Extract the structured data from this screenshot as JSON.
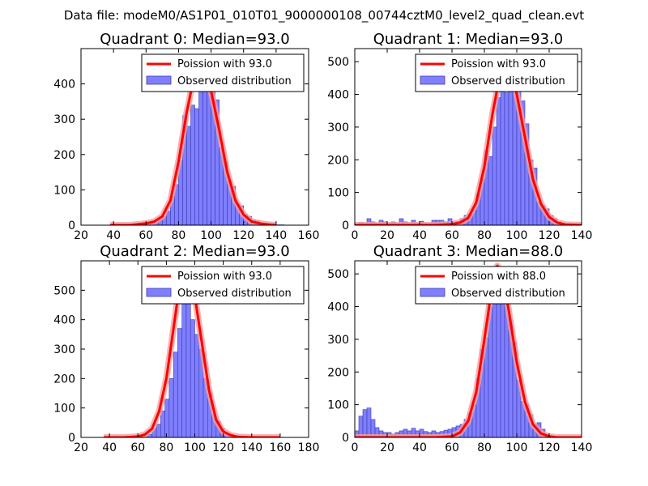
{
  "suptitle": "Data file: modeM0/AS1P01_010T01_9000000108_00744cztM0_level2_quad_clean.evt",
  "colors": {
    "bar_fill": "#7f7fff",
    "bar_edge": "#3b3bb0",
    "curve": "#ff0000",
    "curve_halo": "#f5a0a0"
  },
  "legend": {
    "curve_prefix": "Poission with",
    "bars_label": "Observed distribution"
  },
  "chart_data": [
    {
      "type": "bar",
      "title": "Quadrant 0: Median=93.0",
      "median": 93.0,
      "legend_curve": "Poission with 93.0",
      "legend_bars": "Observed distribution",
      "xlim": [
        20,
        160
      ],
      "ylim": [
        0,
        500
      ],
      "xticks": [
        20,
        40,
        60,
        80,
        100,
        120,
        140,
        160
      ],
      "yticks": [
        0,
        100,
        200,
        300,
        400
      ],
      "bin_width": 2.5,
      "bins": [
        [
          37.5,
          1
        ],
        [
          40,
          1
        ],
        [
          42.5,
          1
        ],
        [
          45,
          1
        ],
        [
          50,
          1
        ],
        [
          55,
          3
        ],
        [
          57.5,
          3
        ],
        [
          60,
          6
        ],
        [
          62.5,
          4
        ],
        [
          65,
          8
        ],
        [
          67.5,
          14
        ],
        [
          70,
          25
        ],
        [
          72.5,
          40
        ],
        [
          75,
          82
        ],
        [
          77.5,
          115
        ],
        [
          80,
          183
        ],
        [
          82.5,
          310
        ],
        [
          85,
          280
        ],
        [
          87.5,
          340
        ],
        [
          90,
          330
        ],
        [
          92.5,
          380
        ],
        [
          95,
          385
        ],
        [
          97.5,
          410
        ],
        [
          100,
          385
        ],
        [
          102.5,
          355
        ],
        [
          105,
          220
        ],
        [
          107.5,
          180
        ],
        [
          110,
          125
        ],
        [
          112.5,
          110
        ],
        [
          115,
          60
        ],
        [
          117.5,
          55
        ],
        [
          120,
          30
        ],
        [
          122.5,
          25
        ],
        [
          125,
          15
        ],
        [
          127.5,
          12
        ],
        [
          130,
          5
        ],
        [
          132.5,
          5
        ],
        [
          135,
          3
        ],
        [
          137.5,
          2
        ],
        [
          140,
          1
        ],
        [
          142.5,
          1
        ]
      ],
      "curve": [
        [
          38,
          0
        ],
        [
          50,
          0
        ],
        [
          60,
          5
        ],
        [
          65,
          10
        ],
        [
          70,
          25
        ],
        [
          75,
          70
        ],
        [
          80,
          180
        ],
        [
          85,
          320
        ],
        [
          90,
          430
        ],
        [
          93,
          460
        ],
        [
          95,
          450
        ],
        [
          100,
          380
        ],
        [
          105,
          270
        ],
        [
          110,
          150
        ],
        [
          115,
          70
        ],
        [
          120,
          30
        ],
        [
          125,
          10
        ],
        [
          130,
          5
        ],
        [
          135,
          2
        ],
        [
          140,
          0
        ]
      ]
    },
    {
      "type": "bar",
      "title": "Quadrant 1: Median=93.0",
      "median": 93.0,
      "legend_curve": "Poission with 93.0",
      "legend_bars": "Observed distribution",
      "xlim": [
        0,
        140
      ],
      "ylim": [
        0,
        540
      ],
      "xticks": [
        0,
        20,
        40,
        60,
        80,
        100,
        120,
        140
      ],
      "yticks": [
        0,
        100,
        200,
        300,
        400,
        500
      ],
      "bin_width": 2.5,
      "bins": [
        [
          2.5,
          8
        ],
        [
          5,
          5
        ],
        [
          7.5,
          20
        ],
        [
          10,
          10
        ],
        [
          12.5,
          5
        ],
        [
          15,
          15
        ],
        [
          17.5,
          10
        ],
        [
          20,
          5
        ],
        [
          22.5,
          10
        ],
        [
          25,
          5
        ],
        [
          27.5,
          20
        ],
        [
          30,
          10
        ],
        [
          32.5,
          5
        ],
        [
          35,
          15
        ],
        [
          37.5,
          5
        ],
        [
          40,
          12
        ],
        [
          42.5,
          5
        ],
        [
          45,
          5
        ],
        [
          47.5,
          15
        ],
        [
          50,
          15
        ],
        [
          52.5,
          15
        ],
        [
          55,
          10
        ],
        [
          57.5,
          20
        ],
        [
          60,
          10
        ],
        [
          62.5,
          12
        ],
        [
          65,
          20
        ],
        [
          67.5,
          30
        ],
        [
          70,
          35
        ],
        [
          72.5,
          45
        ],
        [
          75,
          95
        ],
        [
          77.5,
          140
        ],
        [
          80,
          230
        ],
        [
          82.5,
          210
        ],
        [
          85,
          300
        ],
        [
          87.5,
          390
        ],
        [
          90,
          440
        ],
        [
          92.5,
          405
        ],
        [
          95,
          470
        ],
        [
          97.5,
          490
        ],
        [
          100,
          430
        ],
        [
          102.5,
          380
        ],
        [
          105,
          310
        ],
        [
          107.5,
          200
        ],
        [
          110,
          175
        ],
        [
          112.5,
          70
        ],
        [
          115,
          60
        ],
        [
          117.5,
          50
        ],
        [
          120,
          30
        ],
        [
          122.5,
          20
        ],
        [
          125,
          10
        ],
        [
          127.5,
          5
        ],
        [
          130,
          3
        ],
        [
          132.5,
          2
        ]
      ],
      "curve": [
        [
          0,
          0
        ],
        [
          10,
          0
        ],
        [
          50,
          0
        ],
        [
          60,
          3
        ],
        [
          65,
          8
        ],
        [
          70,
          22
        ],
        [
          75,
          70
        ],
        [
          80,
          180
        ],
        [
          85,
          340
        ],
        [
          90,
          470
        ],
        [
          93,
          515
        ],
        [
          95,
          500
        ],
        [
          100,
          400
        ],
        [
          105,
          270
        ],
        [
          110,
          140
        ],
        [
          115,
          65
        ],
        [
          120,
          25
        ],
        [
          125,
          8
        ],
        [
          130,
          2
        ],
        [
          140,
          0
        ]
      ]
    },
    {
      "type": "bar",
      "title": "Quadrant 2: Median=93.0",
      "median": 93.0,
      "legend_curve": "Poission with 93.0",
      "legend_bars": "Observed distribution",
      "xlim": [
        20,
        180
      ],
      "ylim": [
        0,
        600
      ],
      "xticks": [
        20,
        40,
        60,
        80,
        100,
        120,
        140,
        160,
        180
      ],
      "yticks": [
        0,
        100,
        200,
        300,
        400,
        500
      ],
      "bin_width": 3,
      "bins": [
        [
          37,
          1
        ],
        [
          40,
          1
        ],
        [
          43,
          1
        ],
        [
          46,
          1
        ],
        [
          49,
          1
        ],
        [
          52,
          1
        ],
        [
          55,
          1
        ],
        [
          58,
          2
        ],
        [
          61,
          3
        ],
        [
          64,
          5
        ],
        [
          67,
          10
        ],
        [
          70,
          30
        ],
        [
          73,
          45
        ],
        [
          76,
          90
        ],
        [
          79,
          130
        ],
        [
          82,
          200
        ],
        [
          85,
          290
        ],
        [
          88,
          370
        ],
        [
          91,
          490
        ],
        [
          94,
          480
        ],
        [
          97,
          400
        ],
        [
          100,
          350
        ],
        [
          103,
          300
        ],
        [
          106,
          200
        ],
        [
          109,
          150
        ],
        [
          112,
          80
        ],
        [
          115,
          55
        ],
        [
          118,
          30
        ],
        [
          121,
          10
        ],
        [
          124,
          5
        ],
        [
          127,
          2
        ]
      ],
      "curve": [
        [
          36,
          0
        ],
        [
          50,
          0
        ],
        [
          60,
          3
        ],
        [
          65,
          10
        ],
        [
          70,
          30
        ],
        [
          75,
          90
        ],
        [
          80,
          200
        ],
        [
          85,
          370
        ],
        [
          90,
          540
        ],
        [
          93,
          570
        ],
        [
          96,
          545
        ],
        [
          100,
          480
        ],
        [
          105,
          320
        ],
        [
          110,
          160
        ],
        [
          115,
          60
        ],
        [
          120,
          20
        ],
        [
          125,
          8
        ],
        [
          130,
          2
        ],
        [
          140,
          0
        ],
        [
          160,
          0
        ]
      ]
    },
    {
      "type": "bar",
      "title": "Quadrant 3: Median=88.0",
      "median": 88.0,
      "legend_curve": "Poission with 88.0",
      "legend_bars": "Observed distribution",
      "xlim": [
        0,
        140
      ],
      "ylim": [
        0,
        540
      ],
      "xticks": [
        0,
        20,
        40,
        60,
        80,
        100,
        120,
        140
      ],
      "yticks": [
        0,
        100,
        200,
        300,
        400,
        500
      ],
      "bin_width": 2.5,
      "bins": [
        [
          0,
          20
        ],
        [
          2.5,
          65
        ],
        [
          5,
          85
        ],
        [
          7.5,
          90
        ],
        [
          10,
          55
        ],
        [
          12.5,
          30
        ],
        [
          15,
          20
        ],
        [
          17.5,
          15
        ],
        [
          20,
          15
        ],
        [
          22.5,
          10
        ],
        [
          25,
          15
        ],
        [
          27.5,
          20
        ],
        [
          30,
          25
        ],
        [
          32.5,
          20
        ],
        [
          35,
          28
        ],
        [
          37.5,
          20
        ],
        [
          40,
          25
        ],
        [
          42.5,
          18
        ],
        [
          45,
          15
        ],
        [
          47.5,
          20
        ],
        [
          50,
          15
        ],
        [
          52.5,
          18
        ],
        [
          55,
          22
        ],
        [
          57.5,
          25
        ],
        [
          60,
          30
        ],
        [
          62.5,
          35
        ],
        [
          65,
          40
        ],
        [
          67.5,
          55
        ],
        [
          70,
          75
        ],
        [
          72.5,
          100
        ],
        [
          75,
          180
        ],
        [
          77.5,
          270
        ],
        [
          80,
          305
        ],
        [
          82.5,
          400
        ],
        [
          85,
          470
        ],
        [
          87.5,
          480
        ],
        [
          90,
          430
        ],
        [
          92.5,
          420
        ],
        [
          95,
          360
        ],
        [
          97.5,
          290
        ],
        [
          100,
          175
        ],
        [
          102.5,
          110
        ],
        [
          105,
          100
        ],
        [
          107.5,
          70
        ],
        [
          110,
          40
        ],
        [
          112.5,
          45
        ],
        [
          115,
          25
        ],
        [
          117.5,
          10
        ],
        [
          120,
          3
        ]
      ],
      "curve": [
        [
          0,
          0
        ],
        [
          50,
          0
        ],
        [
          60,
          3
        ],
        [
          65,
          15
        ],
        [
          70,
          50
        ],
        [
          75,
          140
        ],
        [
          80,
          300
        ],
        [
          85,
          470
        ],
        [
          88,
          525
        ],
        [
          91,
          500
        ],
        [
          95,
          390
        ],
        [
          100,
          230
        ],
        [
          105,
          110
        ],
        [
          110,
          40
        ],
        [
          115,
          12
        ],
        [
          120,
          3
        ],
        [
          125,
          0
        ],
        [
          140,
          0
        ]
      ]
    }
  ]
}
